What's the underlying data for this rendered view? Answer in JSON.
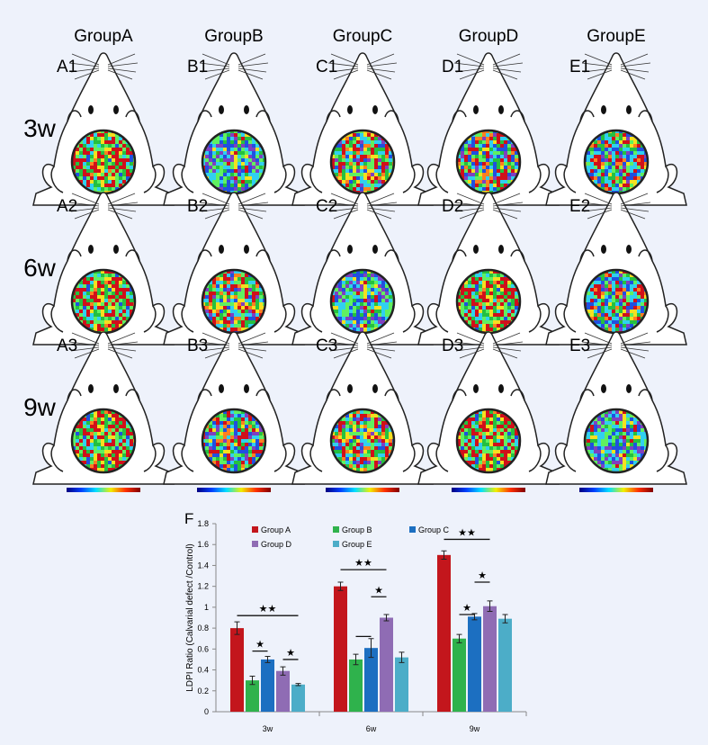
{
  "header": {
    "groups": [
      "GroupA",
      "GroupB",
      "GroupC",
      "GroupD",
      "GroupE"
    ]
  },
  "rows": [
    "3w",
    "6w",
    "9w"
  ],
  "panels": [
    [
      "A1",
      "B1",
      "C1",
      "D1",
      "E1"
    ],
    [
      "A2",
      "B2",
      "C2",
      "D2",
      "E2"
    ],
    [
      "A3",
      "B3",
      "C3",
      "D3",
      "E3"
    ]
  ],
  "chart_data": {
    "type": "bar",
    "title": "F",
    "y_label": "LDPI Ratio (Calvarial  defect /Control)",
    "categories": [
      "3w",
      "6w",
      "9w"
    ],
    "series": [
      {
        "name": "Group A",
        "color": "#c3161c",
        "values": [
          0.8,
          1.2,
          1.5
        ],
        "errors": [
          0.06,
          0.04,
          0.04
        ]
      },
      {
        "name": "Group B",
        "color": "#2fb24c",
        "values": [
          0.3,
          0.5,
          0.7
        ],
        "errors": [
          0.04,
          0.05,
          0.04
        ]
      },
      {
        "name": "Group C",
        "color": "#1c6fc1",
        "values": [
          0.5,
          0.61,
          0.91
        ],
        "errors": [
          0.03,
          0.09,
          0.03
        ]
      },
      {
        "name": "Group D",
        "color": "#8f6cb4",
        "values": [
          0.39,
          0.9,
          1.01
        ],
        "errors": [
          0.04,
          0.03,
          0.05
        ]
      },
      {
        "name": "Group E",
        "color": "#4cadc8",
        "values": [
          0.26,
          0.52,
          0.89
        ],
        "errors": [
          0.01,
          0.05,
          0.04
        ]
      }
    ],
    "ylim": [
      0,
      1.8
    ],
    "yticks": [
      0,
      0.2,
      0.4,
      0.6,
      0.8,
      1,
      1.2,
      1.4,
      1.6,
      1.8
    ],
    "annotations": [
      {
        "text": "★★",
        "category": 0,
        "from": 0,
        "to": 4,
        "y": 0.92
      },
      {
        "text": "★",
        "category": 0,
        "from": 1,
        "to": 2,
        "y": 0.58
      },
      {
        "text": "★",
        "category": 0,
        "from": 3,
        "to": 4,
        "y": 0.5
      },
      {
        "text": "★★",
        "category": 1,
        "from": 0,
        "to": 3,
        "y": 1.36
      },
      {
        "category": 1,
        "from": 1,
        "to": 2,
        "y": 0.72
      },
      {
        "text": "★",
        "category": 1,
        "from": 2,
        "to": 3,
        "y": 1.1
      },
      {
        "text": "★★",
        "category": 2,
        "from": 0,
        "to": 3,
        "y": 1.65
      },
      {
        "text": "★",
        "category": 2,
        "from": 2,
        "to": 3,
        "y": 1.24
      },
      {
        "text": "★",
        "category": 2,
        "from": 1,
        "to": 2,
        "y": 0.93
      }
    ]
  }
}
